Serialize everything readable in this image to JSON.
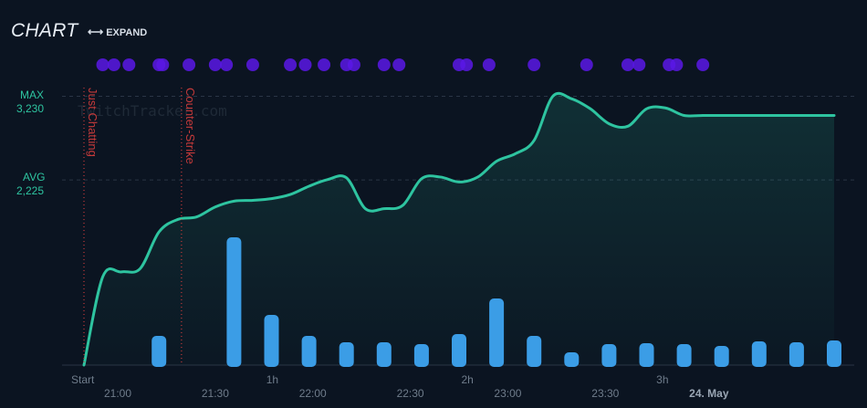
{
  "header": {
    "title": "CHART",
    "expand_label": "EXPAND"
  },
  "watermark": "TwitchTracker.com",
  "stats": {
    "max_label": "MAX",
    "max_value": "3,230",
    "avg_label": "AVG",
    "avg_value": "2,225"
  },
  "colors": {
    "line": "#2ec4a0",
    "bars": "#3b9de6",
    "dots": "#5a18e6",
    "category_marker": "#c43a3a",
    "background": "#0b1421"
  },
  "chart_data": {
    "type": "line",
    "viewers": {
      "name": "viewers",
      "x": [
        0,
        5,
        10,
        15,
        20,
        25,
        30,
        35,
        40,
        45,
        50,
        55,
        60,
        65,
        70,
        75,
        80,
        85,
        90,
        95,
        100,
        105,
        110,
        115,
        120,
        125,
        130,
        135,
        140,
        145,
        150,
        155,
        160,
        165,
        170,
        175,
        180,
        185,
        190,
        195,
        200
      ],
      "values": [
        0,
        1060,
        1120,
        1160,
        1600,
        1750,
        1780,
        1900,
        1970,
        1980,
        2000,
        2050,
        2150,
        2230,
        2250,
        1880,
        1880,
        1920,
        2240,
        2260,
        2200,
        2260,
        2450,
        2540,
        2700,
        3230,
        3200,
        3080,
        2900,
        2870,
        3080,
        3090,
        3000,
        3000,
        3000,
        3000,
        3000,
        3000,
        3000,
        3000,
        3000
      ],
      "ylim": [
        0,
        3400
      ]
    },
    "chat_activity": {
      "name": "chat",
      "x": [
        20,
        40,
        50,
        60,
        70,
        80,
        90,
        100,
        110,
        120,
        130,
        140,
        150,
        160,
        170,
        180,
        190,
        200
      ],
      "values": [
        32,
        140,
        55,
        32,
        25,
        25,
        23,
        34,
        73,
        32,
        14,
        23,
        24,
        23,
        21,
        26,
        25,
        27
      ]
    },
    "events_x": [
      5,
      8,
      12,
      20,
      21,
      28,
      35,
      38,
      45,
      55,
      59,
      64,
      70,
      72,
      80,
      84,
      100,
      102,
      108,
      120,
      134,
      145,
      148,
      156,
      158,
      165
    ],
    "category_markers": [
      {
        "label": "Just Chatting",
        "x": 0
      },
      {
        "label": "Counter-Strike",
        "x": 26
      }
    ],
    "x_ticks_top": [
      {
        "label": "Start",
        "x": 0
      },
      {
        "label": "1h",
        "x": 52
      },
      {
        "label": "2h",
        "x": 104
      },
      {
        "label": "3h",
        "x": 156
      }
    ],
    "x_ticks_bottom": [
      {
        "label": "21:00",
        "x": 9
      },
      {
        "label": "21:30",
        "x": 35
      },
      {
        "label": "22:00",
        "x": 61
      },
      {
        "label": "22:30",
        "x": 87
      },
      {
        "label": "23:00",
        "x": 113
      },
      {
        "label": "23:30",
        "x": 139
      },
      {
        "label": "24. May",
        "x": 165
      }
    ],
    "xlim": [
      0,
      200
    ],
    "grid": "dashed at MAX and AVG"
  }
}
